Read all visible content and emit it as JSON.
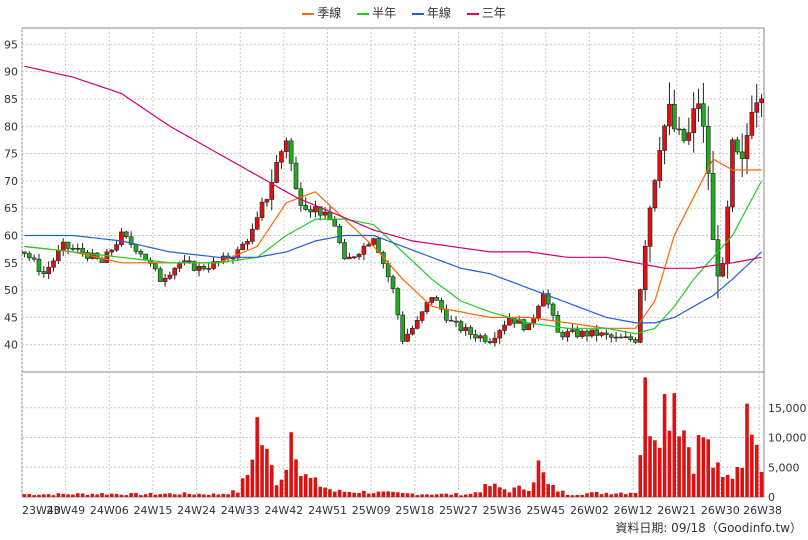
{
  "legend": [
    {
      "label": "季線",
      "color": "#ff6600"
    },
    {
      "label": "半年",
      "color": "#22cc22"
    },
    {
      "label": "年線",
      "color": "#1f5fd6"
    },
    {
      "label": "三年",
      "color": "#d6006e"
    }
  ],
  "footer": "資料日期: 09/18（Goodinfo.tw）",
  "chart_data": {
    "type": "candlestick",
    "price_axis": {
      "ylim": [
        35,
        98
      ],
      "ticks": [
        40,
        45,
        50,
        55,
        60,
        65,
        70,
        75,
        80,
        85,
        90,
        95
      ]
    },
    "volume_axis": {
      "ylim": [
        0,
        20000
      ],
      "ticks": [
        0,
        5000,
        10000,
        15000
      ],
      "tick_labels": [
        "0",
        "5,000",
        "10,000",
        "15,000"
      ]
    },
    "x_ticks": [
      "23W40",
      "23W49",
      "24W06",
      "24W15",
      "24W24",
      "24W33",
      "24W42",
      "24W51",
      "25W09",
      "25W18",
      "25W27",
      "25W36",
      "25W45",
      "26W02",
      "26W12",
      "26W21",
      "26W30",
      "26W38"
    ],
    "x_tick_indices": [
      0,
      9,
      18,
      27,
      36,
      45,
      54,
      63,
      72,
      81,
      90,
      99,
      108,
      117,
      126,
      135,
      144,
      152
    ],
    "ma": {
      "季線": [
        [
          0,
          58
        ],
        [
          10,
          57
        ],
        [
          20,
          55
        ],
        [
          30,
          55
        ],
        [
          40,
          55
        ],
        [
          48,
          58
        ],
        [
          54,
          66
        ],
        [
          60,
          68
        ],
        [
          66,
          63
        ],
        [
          72,
          58
        ],
        [
          78,
          52
        ],
        [
          84,
          47
        ],
        [
          90,
          46
        ],
        [
          96,
          45
        ],
        [
          104,
          45
        ],
        [
          112,
          44
        ],
        [
          120,
          43
        ],
        [
          126,
          43
        ],
        [
          130,
          48
        ],
        [
          134,
          60
        ],
        [
          138,
          67
        ],
        [
          142,
          74
        ],
        [
          146,
          72
        ],
        [
          152,
          72
        ]
      ],
      "半年": [
        [
          0,
          58
        ],
        [
          10,
          57
        ],
        [
          20,
          56
        ],
        [
          30,
          55
        ],
        [
          40,
          55
        ],
        [
          48,
          56
        ],
        [
          54,
          60
        ],
        [
          60,
          63
        ],
        [
          66,
          63
        ],
        [
          72,
          62
        ],
        [
          78,
          57
        ],
        [
          84,
          52
        ],
        [
          90,
          48
        ],
        [
          96,
          46
        ],
        [
          104,
          44
        ],
        [
          112,
          43
        ],
        [
          120,
          43
        ],
        [
          126,
          42
        ],
        [
          130,
          43
        ],
        [
          134,
          47
        ],
        [
          138,
          52
        ],
        [
          142,
          56
        ],
        [
          146,
          60
        ],
        [
          152,
          70
        ]
      ],
      "年線": [
        [
          0,
          60
        ],
        [
          10,
          60
        ],
        [
          20,
          59
        ],
        [
          30,
          57
        ],
        [
          40,
          56
        ],
        [
          48,
          56
        ],
        [
          54,
          57
        ],
        [
          60,
          59
        ],
        [
          66,
          60
        ],
        [
          72,
          60
        ],
        [
          78,
          58
        ],
        [
          84,
          56
        ],
        [
          90,
          54
        ],
        [
          96,
          53
        ],
        [
          102,
          51
        ],
        [
          108,
          49
        ],
        [
          114,
          47
        ],
        [
          120,
          45
        ],
        [
          126,
          44
        ],
        [
          130,
          44
        ],
        [
          134,
          45
        ],
        [
          138,
          47
        ],
        [
          142,
          49
        ],
        [
          146,
          52
        ],
        [
          152,
          57
        ]
      ],
      "三年": [
        [
          0,
          91
        ],
        [
          10,
          89
        ],
        [
          20,
          86
        ],
        [
          30,
          80
        ],
        [
          40,
          75
        ],
        [
          48,
          71
        ],
        [
          56,
          67
        ],
        [
          64,
          64
        ],
        [
          72,
          61
        ],
        [
          80,
          59
        ],
        [
          88,
          58
        ],
        [
          96,
          57
        ],
        [
          104,
          57
        ],
        [
          112,
          56
        ],
        [
          120,
          56
        ],
        [
          126,
          55
        ],
        [
          132,
          54
        ],
        [
          138,
          54
        ],
        [
          146,
          55
        ],
        [
          152,
          56
        ]
      ]
    },
    "price_anchors": [
      [
        0,
        57
      ],
      [
        4,
        53
      ],
      [
        8,
        58
      ],
      [
        12,
        57
      ],
      [
        16,
        55
      ],
      [
        20,
        60
      ],
      [
        24,
        57
      ],
      [
        28,
        52
      ],
      [
        32,
        55
      ],
      [
        36,
        54
      ],
      [
        40,
        55
      ],
      [
        44,
        57
      ],
      [
        48,
        62
      ],
      [
        52,
        73
      ],
      [
        54,
        78
      ],
      [
        56,
        68
      ],
      [
        60,
        65
      ],
      [
        64,
        62
      ],
      [
        66,
        55
      ],
      [
        70,
        58
      ],
      [
        72,
        60
      ],
      [
        76,
        50
      ],
      [
        78,
        41
      ],
      [
        81,
        44
      ],
      [
        84,
        49
      ],
      [
        88,
        44
      ],
      [
        92,
        42
      ],
      [
        96,
        41
      ],
      [
        100,
        45
      ],
      [
        104,
        43
      ],
      [
        107,
        50
      ],
      [
        110,
        42
      ],
      [
        114,
        42
      ],
      [
        118,
        42
      ],
      [
        122,
        41
      ],
      [
        126,
        41
      ],
      [
        128,
        60
      ],
      [
        131,
        78
      ],
      [
        133,
        82
      ],
      [
        135,
        77
      ],
      [
        137,
        78
      ],
      [
        139,
        85
      ],
      [
        141,
        72
      ],
      [
        142,
        58
      ],
      [
        144,
        52
      ],
      [
        146,
        75
      ],
      [
        148,
        72
      ],
      [
        150,
        85
      ],
      [
        152,
        88
      ]
    ],
    "volume_anchors": [
      [
        0,
        500
      ],
      [
        8,
        500
      ],
      [
        16,
        600
      ],
      [
        24,
        500
      ],
      [
        32,
        600
      ],
      [
        40,
        500
      ],
      [
        44,
        1000
      ],
      [
        46,
        4000
      ],
      [
        48,
        13000
      ],
      [
        50,
        7000
      ],
      [
        52,
        3000
      ],
      [
        54,
        5000
      ],
      [
        55,
        17500
      ],
      [
        57,
        4000
      ],
      [
        60,
        2500
      ],
      [
        64,
        1000
      ],
      [
        70,
        900
      ],
      [
        78,
        600
      ],
      [
        86,
        500
      ],
      [
        92,
        500
      ],
      [
        96,
        2000
      ],
      [
        100,
        1200
      ],
      [
        104,
        1800
      ],
      [
        106,
        5500
      ],
      [
        108,
        2000
      ],
      [
        112,
        500
      ],
      [
        118,
        700
      ],
      [
        124,
        800
      ],
      [
        126,
        900
      ],
      [
        128,
        17000
      ],
      [
        130,
        14000
      ],
      [
        131,
        15000
      ],
      [
        133,
        18000
      ],
      [
        134,
        20000
      ],
      [
        136,
        12000
      ],
      [
        138,
        7000
      ],
      [
        140,
        11000
      ],
      [
        142,
        6000
      ],
      [
        144,
        3000
      ],
      [
        146,
        4000
      ],
      [
        148,
        8000
      ],
      [
        150,
        17000
      ],
      [
        151,
        14500
      ],
      [
        152,
        6000
      ]
    ]
  }
}
